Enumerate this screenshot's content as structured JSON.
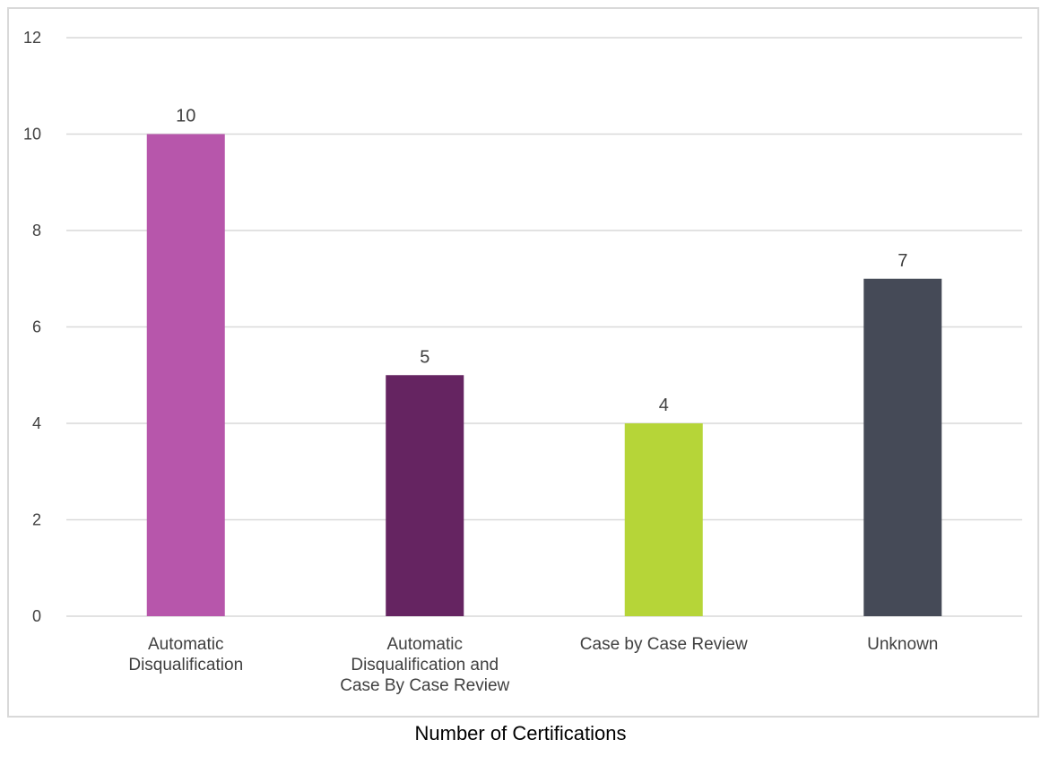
{
  "chart_data": {
    "type": "bar",
    "categories": [
      [
        "Automatic",
        "Disqualification"
      ],
      [
        "Automatic",
        "Disqualification and",
        "Case By Case Review"
      ],
      [
        "Case by Case Review"
      ],
      [
        "Unknown"
      ]
    ],
    "values": [
      10,
      5,
      4,
      7
    ],
    "colors": [
      "#b756ab",
      "#652461",
      "#b6d538",
      "#454a57"
    ],
    "ylim": [
      0,
      12
    ],
    "yticks": [
      0,
      2,
      4,
      6,
      8,
      10,
      12
    ],
    "grid": true,
    "legend": "none",
    "data_labels": true
  },
  "caption": "Number of Certifications"
}
